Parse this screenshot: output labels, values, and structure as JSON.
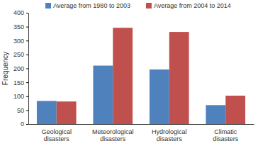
{
  "chart_data": {
    "type": "bar",
    "categories": [
      "Geological disasters",
      "Meteorological disasters",
      "Hydrological disasters",
      "Climatic disasters"
    ],
    "series": [
      {
        "name": "Average from 1980 to 2003",
        "color": "#4f81bd",
        "values": [
          83,
          210,
          196,
          68
        ]
      },
      {
        "name": "Average from 2004 to 2014",
        "color": "#c0504d",
        "values": [
          81,
          346,
          331,
          102
        ]
      }
    ],
    "y_label": "Frequency",
    "ylim": [
      0,
      400
    ],
    "yticks": [
      0,
      50,
      100,
      150,
      200,
      250,
      300,
      350,
      400
    ],
    "grid": false,
    "legend": "top"
  }
}
